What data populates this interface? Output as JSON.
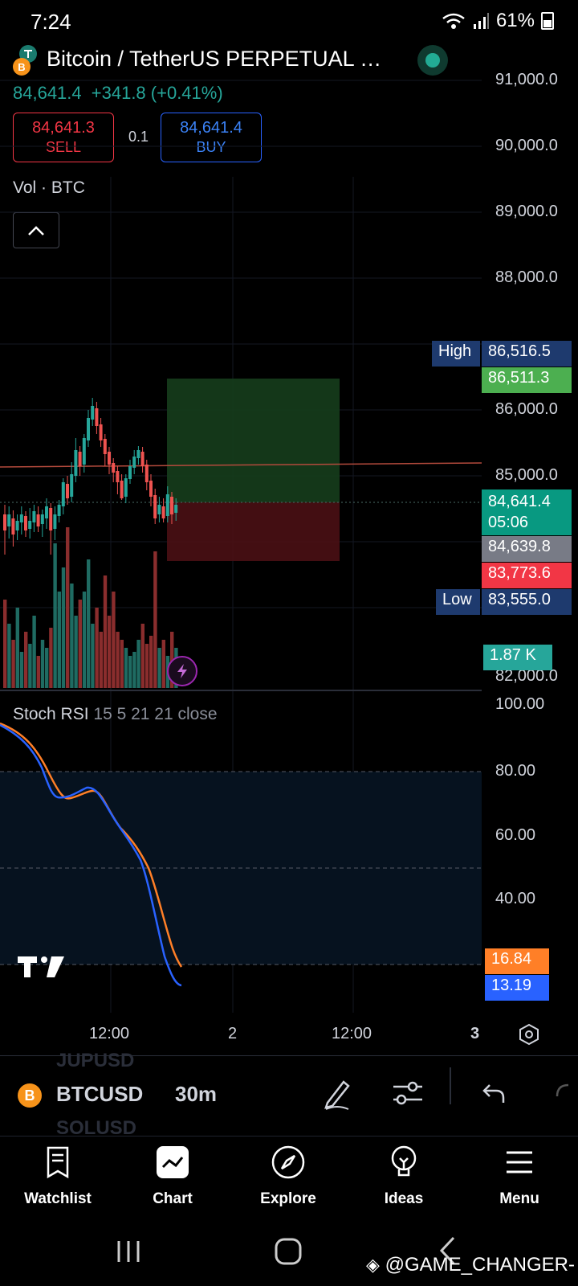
{
  "status_bar": {
    "time": "7:24",
    "battery": "61%"
  },
  "header": {
    "title": "Bitcoin / TetherUS PERPETUAL …",
    "coin_letter": "B",
    "price": "84,641.4",
    "change": "+341.8 (+0.41%)",
    "sell_price": "84,641.3",
    "sell_label": "SELL",
    "quantity": "0.1",
    "buy_price": "84,641.4",
    "buy_label": "BUY",
    "vol_label": "Vol · BTC"
  },
  "price_axis": {
    "ticks": [
      "91,000.0",
      "90,000.0",
      "89,000.0",
      "88,000.0",
      "86,000.0",
      "85,000.0",
      "82,000.0"
    ],
    "high_label": "High",
    "high_value": "86,516.5",
    "target_value": "86,511.3",
    "current_price": "84,641.4",
    "countdown": "05:06",
    "stop_value": "84,639.8",
    "entry_value": "83,773.6",
    "low_label": "Low",
    "low_value": "83,555.0",
    "volume_value": "1.87 K"
  },
  "stoch_rsi": {
    "name": "Stoch RSI",
    "params": "15 5 21 21 close",
    "ticks": [
      "100.00",
      "80.00",
      "60.00",
      "40.00"
    ],
    "k_value": "16.84",
    "d_value": "13.19"
  },
  "time_axis": {
    "labels": [
      "12:00",
      "2",
      "12:00",
      "3"
    ]
  },
  "toolbar": {
    "symbol": "BTCUSD",
    "symbol_coin": "B",
    "interval": "30m",
    "ghost_above": "JUPUSD",
    "ghost_below": "SOLUSD"
  },
  "bottom_nav": {
    "items": [
      {
        "label": "Watchlist",
        "icon": "watchlist-icon"
      },
      {
        "label": "Chart",
        "icon": "chart-icon"
      },
      {
        "label": "Explore",
        "icon": "compass-icon"
      },
      {
        "label": "Ideas",
        "icon": "lightbulb-icon"
      },
      {
        "label": "Menu",
        "icon": "hamburger-icon"
      }
    ]
  },
  "watermark": "@GAME_CHANGER-",
  "colors": {
    "up": "#26a69a",
    "down": "#ef5350",
    "buy_blue": "#2962ff",
    "stoch_k": "#ff7f27",
    "stoch_d": "#2962ff",
    "high_tag": "#1e3a6e"
  }
}
